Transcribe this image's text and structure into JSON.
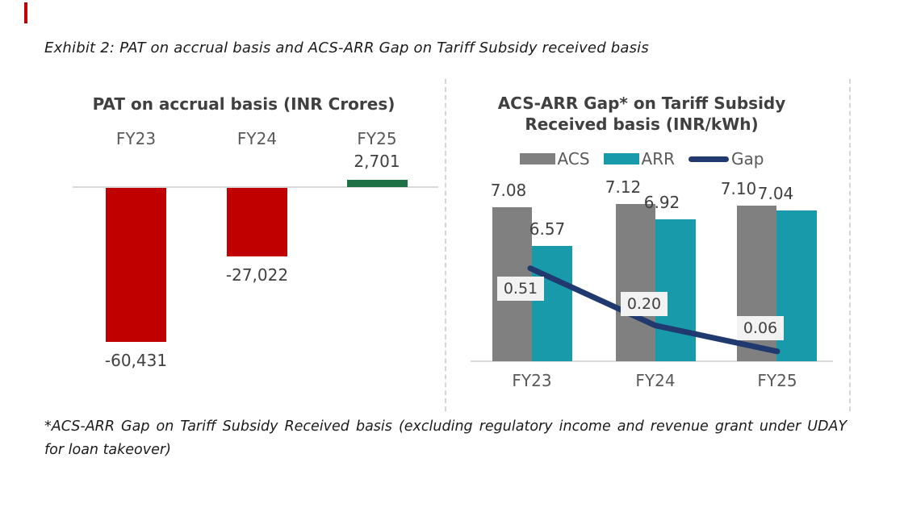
{
  "page": {
    "exhibit_title": "Exhibit 2: PAT on accrual basis and ACS-ARR Gap on Tariff Subsidy received basis",
    "footnote_line1": "*ACS-ARR Gap on Tariff Subsidy Received basis (excluding regulatory income and revenue grant under UDAY",
    "footnote_line2": "for loan takeover)"
  },
  "colors": {
    "negative_bar": "#c00000",
    "positive_bar": "#1e7145",
    "acs_bar": "#808080",
    "arr_bar": "#199aab",
    "gap_line": "#203a70",
    "axis_line": "#d9d9d9",
    "separator": "#d6d6d6",
    "label_dark": "#404040",
    "label_gray": "#595959",
    "gap_label_bg": "#f2f2f2",
    "text_dark": "#1b1b1b",
    "red_mark": "#c00000"
  },
  "chart_data": [
    {
      "type": "bar",
      "title": "PAT on accrual basis (INR Crores)",
      "categories": [
        "FY23",
        "FY24",
        "FY25"
      ],
      "values": [
        -60431,
        -27022,
        2701
      ],
      "value_labels": [
        "-60,431",
        "-27,022",
        "2,701"
      ],
      "xlabel": "",
      "ylabel": "PAT (INR Crores)",
      "ylim": [
        -70000,
        10000
      ],
      "grid": false,
      "y_axis_visible": false,
      "notes": "negative bars red, positive bar green, zero baseline shown"
    },
    {
      "type": "bar+line",
      "title": "ACS-ARR Gap* on Tariff Subsidy Received basis (INR/kWh)",
      "title_line1": "ACS-ARR Gap* on Tariff Subsidy",
      "title_line2": "Received basis (INR/kWh)",
      "categories": [
        "FY23",
        "FY24",
        "FY25"
      ],
      "series": [
        {
          "name": "ACS",
          "type": "bar",
          "values": [
            7.08,
            7.12,
            7.1
          ],
          "labels": [
            "7.08",
            "7.12",
            "7.10"
          ]
        },
        {
          "name": "ARR",
          "type": "bar",
          "values": [
            6.57,
            6.92,
            7.04
          ],
          "labels": [
            "6.57",
            "6.92",
            "7.04"
          ]
        },
        {
          "name": "Gap",
          "type": "line",
          "values": [
            0.51,
            0.2,
            0.06
          ],
          "labels": [
            "0.51",
            "0.20",
            "0.06"
          ]
        }
      ],
      "legend": [
        "ACS",
        "ARR",
        "Gap"
      ],
      "legend_position": "top",
      "xlabel": "",
      "ylabel": "INR/kWh",
      "ylim": [
        5.0,
        7.3
      ],
      "grid": false,
      "y_axis_visible": false
    }
  ]
}
